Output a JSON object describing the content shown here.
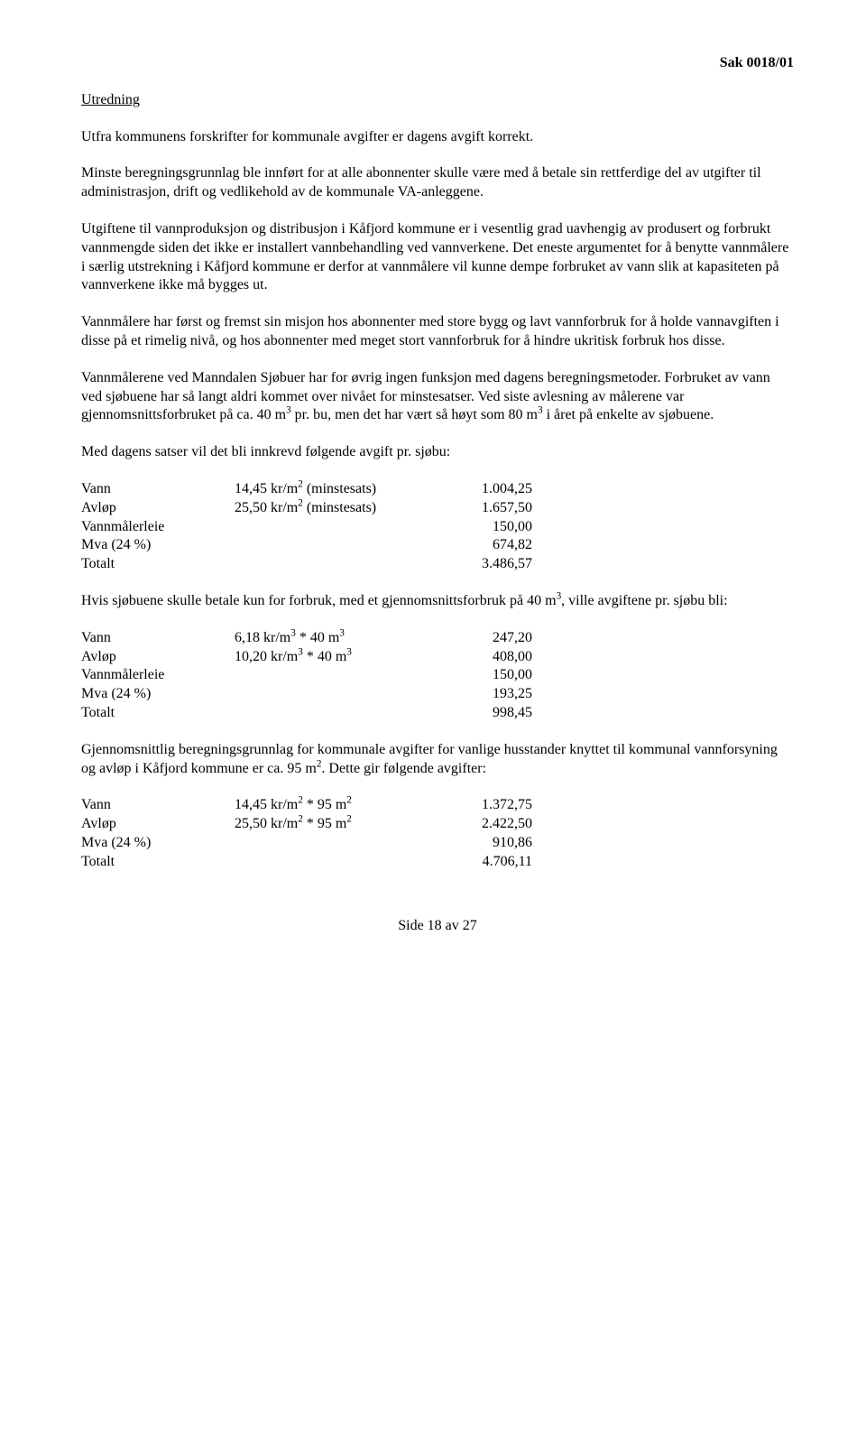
{
  "header": {
    "case_number": "Sak 0018/01"
  },
  "section_title": "Utredning",
  "paragraphs": {
    "p1": "Utfra kommunens forskrifter for kommunale avgifter er dagens avgift korrekt.",
    "p2": "Minste beregningsgrunnlag ble innført for at alle abonnenter skulle være med å betale sin rettferdige del av utgifter til administrasjon, drift og vedlikehold av de kommunale VA-anleggene.",
    "p3": "Utgiftene til vannproduksjon og distribusjon i Kåfjord kommune er i vesentlig grad uavhengig av produsert og forbrukt vannmengde siden det ikke er installert vannbehandling ved vannverkene. Det eneste argumentet for å benytte vannmålere i særlig utstrekning i Kåfjord kommune er derfor at vannmålere vil kunne dempe forbruket av vann slik at kapasiteten på vannverkene ikke må bygges ut.",
    "p4": "Vannmålere har først og fremst sin misjon hos abonnenter med store bygg og lavt vannforbruk for å holde vannavgiften i disse på et rimelig nivå, og hos abonnenter med meget stort vannforbruk for å hindre ukritisk forbruk hos disse.",
    "p5a": "Vannmålerene ved Manndalen Sjøbuer har for øvrig ingen funksjon med dagens beregningsmetoder. Forbruket av vann ved sjøbuene har så langt aldri kommet over nivået for minstesatser. Ved siste avlesning av målerene var gjennomsnittsforbruket på ca. 40 m",
    "p5b": " pr. bu, men det har vært så høyt som 80 m",
    "p5c": " i året på enkelte av sjøbuene.",
    "p6": "Med dagens satser vil det bli innkrevd følgende avgift pr. sjøbu:",
    "p7a": "Hvis sjøbuene skulle betale kun for forbruk, med et gjennomsnittsforbruk på 40 m",
    "p7b": ", ville avgiftene pr. sjøbu bli:",
    "p8a": "Gjennomsnittlig beregningsgrunnlag for kommunale avgifter for vanlige husstander knyttet til kommunal vannforsyning og avløp i Kåfjord kommune er ca. 95 m",
    "p8b": ". Dette gir følgende avgifter:"
  },
  "table1": {
    "rows": [
      {
        "label": "Vann",
        "desc_pre": "14,45 kr/m",
        "sup1": "2",
        "desc_mid": "  (minstesats)",
        "value": "1.004,25"
      },
      {
        "label": "Avløp",
        "desc_pre": "25,50 kr/m",
        "sup1": "2",
        "desc_mid": "  (minstesats)",
        "value": "1.657,50"
      },
      {
        "label": "Vannmålerleie",
        "desc_pre": "",
        "value": "150,00"
      },
      {
        "label": "Mva (24 %)",
        "desc_pre": "",
        "value": "674,82"
      },
      {
        "label": "Totalt",
        "desc_pre": "",
        "value": "3.486,57"
      }
    ]
  },
  "table2": {
    "rows": [
      {
        "label": "Vann",
        "desc_pre": "6,18 kr/m",
        "sup1": "3",
        "desc_mid": "  * 40 m",
        "sup2": "3",
        "value": "247,20"
      },
      {
        "label": "Avløp",
        "desc_pre": "10,20 kr/m",
        "sup1": "3",
        "desc_mid": " * 40 m",
        "sup2": "3",
        "value": "408,00"
      },
      {
        "label": "Vannmålerleie",
        "desc_pre": "",
        "value": "150,00"
      },
      {
        "label": "Mva (24 %)",
        "desc_pre": "",
        "value": "193,25"
      },
      {
        "label": "Totalt",
        "desc_pre": "",
        "value": "998,45"
      }
    ]
  },
  "table3": {
    "rows": [
      {
        "label": "Vann",
        "desc_pre": "14,45 kr/m",
        "sup1": "2",
        "desc_mid": "  * 95 m",
        "sup2": "2",
        "value": "1.372,75"
      },
      {
        "label": "Avløp",
        "desc_pre": "25,50 kr/m",
        "sup1": "2",
        "desc_mid": "  * 95 m",
        "sup2": "2",
        "value": "2.422,50"
      },
      {
        "label": "Mva (24 %)",
        "desc_pre": "",
        "value": "910,86"
      },
      {
        "label": "Totalt",
        "desc_pre": "",
        "value": "4.706,11"
      }
    ]
  },
  "footer": "Side 18 av 27"
}
